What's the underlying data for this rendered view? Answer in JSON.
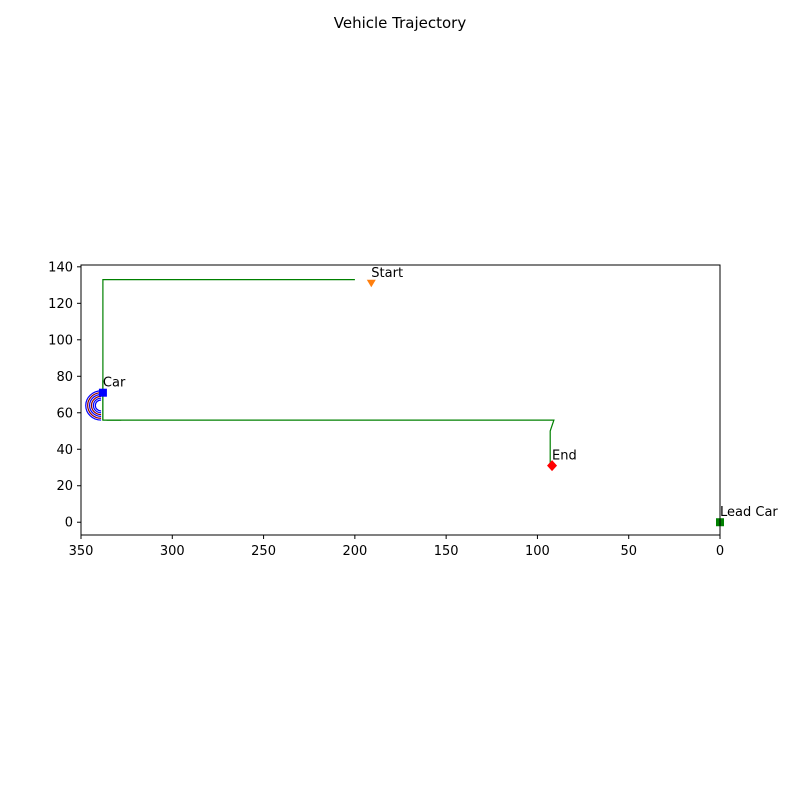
{
  "chart_data": {
    "type": "line",
    "title": "Vehicle Trajectory",
    "xlabel": "",
    "ylabel": "",
    "xlim": [
      350,
      0
    ],
    "ylim": [
      -7,
      141
    ],
    "x_inverted": true,
    "grid": false,
    "x_ticks": [
      350,
      300,
      250,
      200,
      150,
      100,
      50,
      0
    ],
    "y_ticks": [
      0,
      20,
      40,
      60,
      80,
      100,
      120,
      140
    ],
    "path": {
      "color": "#008000",
      "points": [
        [
          200,
          133
        ],
        [
          338,
          133
        ],
        [
          338,
          56
        ],
        [
          91,
          56
        ],
        [
          93,
          50
        ],
        [
          93,
          31
        ]
      ]
    },
    "short_segments": [
      {
        "color": "#008000",
        "points": [
          [
            338,
            78
          ],
          [
            338,
            56
          ]
        ]
      },
      {
        "color": "#008000",
        "points": [
          [
            336,
            56
          ],
          [
            328,
            56
          ]
        ]
      }
    ],
    "turn_arcs": {
      "center": [
        339,
        64
      ],
      "start_deg": 90,
      "end_deg": 270,
      "curves": [
        {
          "color": "#0000ff",
          "radius": 3
        },
        {
          "color": "#0000ff",
          "radius": 4
        },
        {
          "color": "#8b0000",
          "radius": 5
        },
        {
          "color": "#0000ff",
          "radius": 6
        },
        {
          "color": "#8b0000",
          "radius": 7
        },
        {
          "color": "#0000ff",
          "radius": 8
        }
      ]
    },
    "markers": [
      {
        "label": "Start",
        "x": 191,
        "y": 131,
        "shape": "triangle-down",
        "color": "#ff7f0e"
      },
      {
        "label": "Car",
        "x": 338,
        "y": 71,
        "shape": "square",
        "color": "#0000ff"
      },
      {
        "label": "End",
        "x": 92,
        "y": 31,
        "shape": "diamond",
        "color": "#ff0000"
      },
      {
        "label": "Lead Car",
        "x": 0,
        "y": 0,
        "shape": "square",
        "color": "#008000"
      }
    ]
  }
}
